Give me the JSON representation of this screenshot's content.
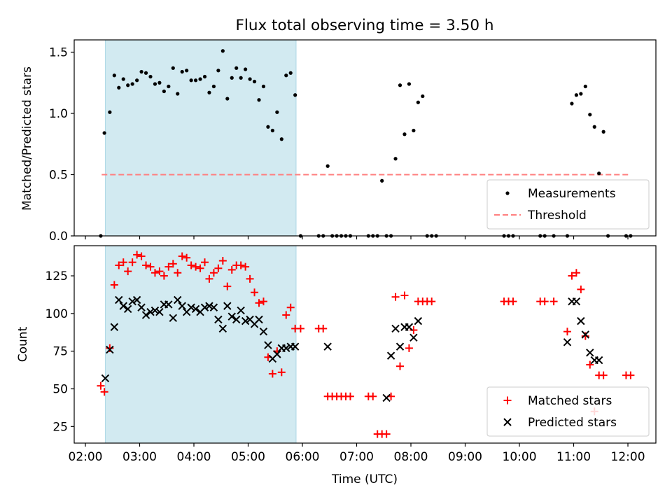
{
  "title": "Flux total observing time = 3.50 h",
  "chart_data": [
    {
      "type": "scatter",
      "panel": "top",
      "ylabel": "Matched/Predicted stars",
      "ylim": [
        0,
        1.6
      ],
      "yticks": [
        0.0,
        0.5,
        1.0,
        1.5
      ],
      "ytick_labels": [
        "0.0",
        "0.5",
        "1.0",
        "1.5"
      ],
      "xlim": [
        "02:00",
        "12:00"
      ],
      "grid": false,
      "legend": "bottom-right",
      "shaded_interval": {
        "start": "02:22",
        "end": "05:53",
        "color": "#add8e6"
      },
      "threshold": {
        "name": "Threshold",
        "value": 0.5,
        "x_range": [
          "02:18",
          "12:03"
        ],
        "color": "#ff7f7f",
        "style": "dashed"
      },
      "series": [
        {
          "name": "Measurements",
          "marker": "dot",
          "color": "#000000",
          "points": [
            [
              "02:17",
              0.0
            ],
            [
              "02:21",
              0.84
            ],
            [
              "02:27",
              1.01
            ],
            [
              "02:32",
              1.31
            ],
            [
              "02:37",
              1.21
            ],
            [
              "02:42",
              1.28
            ],
            [
              "02:47",
              1.23
            ],
            [
              "02:52",
              1.24
            ],
            [
              "02:57",
              1.27
            ],
            [
              "03:02",
              1.34
            ],
            [
              "03:07",
              1.33
            ],
            [
              "03:12",
              1.3
            ],
            [
              "03:17",
              1.24
            ],
            [
              "03:22",
              1.25
            ],
            [
              "03:27",
              1.18
            ],
            [
              "03:32",
              1.22
            ],
            [
              "03:37",
              1.37
            ],
            [
              "03:42",
              1.16
            ],
            [
              "03:47",
              1.34
            ],
            [
              "03:52",
              1.35
            ],
            [
              "03:57",
              1.27
            ],
            [
              "04:02",
              1.27
            ],
            [
              "04:07",
              1.28
            ],
            [
              "04:12",
              1.3
            ],
            [
              "04:17",
              1.17
            ],
            [
              "04:22",
              1.22
            ],
            [
              "04:27",
              1.35
            ],
            [
              "04:32",
              1.51
            ],
            [
              "04:37",
              1.12
            ],
            [
              "04:42",
              1.29
            ],
            [
              "04:47",
              1.37
            ],
            [
              "04:52",
              1.29
            ],
            [
              "04:57",
              1.36
            ],
            [
              "05:02",
              1.28
            ],
            [
              "05:07",
              1.26
            ],
            [
              "05:12",
              1.11
            ],
            [
              "05:17",
              1.22
            ],
            [
              "05:22",
              0.89
            ],
            [
              "05:27",
              0.86
            ],
            [
              "05:32",
              1.01
            ],
            [
              "05:37",
              0.79
            ],
            [
              "05:42",
              1.31
            ],
            [
              "05:47",
              1.33
            ],
            [
              "05:52",
              1.15
            ],
            [
              "05:58",
              0.0
            ],
            [
              "06:18",
              0.0
            ],
            [
              "06:23",
              0.0
            ],
            [
              "06:28",
              0.57
            ],
            [
              "06:33",
              0.0
            ],
            [
              "06:38",
              0.0
            ],
            [
              "06:43",
              0.0
            ],
            [
              "06:48",
              0.0
            ],
            [
              "06:53",
              0.0
            ],
            [
              "07:13",
              0.0
            ],
            [
              "07:18",
              0.0
            ],
            [
              "07:23",
              0.0
            ],
            [
              "07:28",
              0.45
            ],
            [
              "07:33",
              0.0
            ],
            [
              "07:38",
              0.0
            ],
            [
              "07:43",
              0.63
            ],
            [
              "07:48",
              1.23
            ],
            [
              "07:53",
              0.83
            ],
            [
              "07:58",
              1.24
            ],
            [
              "08:03",
              0.86
            ],
            [
              "08:08",
              1.09
            ],
            [
              "08:13",
              1.14
            ],
            [
              "08:18",
              0.0
            ],
            [
              "08:23",
              0.0
            ],
            [
              "08:28",
              0.0
            ],
            [
              "09:43",
              0.0
            ],
            [
              "09:48",
              0.0
            ],
            [
              "09:53",
              0.0
            ],
            [
              "10:23",
              0.0
            ],
            [
              "10:28",
              0.0
            ],
            [
              "10:38",
              0.0
            ],
            [
              "10:53",
              0.0
            ],
            [
              "10:58",
              1.08
            ],
            [
              "11:03",
              1.15
            ],
            [
              "11:08",
              1.16
            ],
            [
              "11:13",
              1.22
            ],
            [
              "11:18",
              0.99
            ],
            [
              "11:23",
              0.89
            ],
            [
              "11:28",
              0.51
            ],
            [
              "11:33",
              0.85
            ],
            [
              "11:38",
              0.0
            ],
            [
              "11:58",
              0.0
            ],
            [
              "12:03",
              0.0
            ]
          ]
        }
      ]
    },
    {
      "type": "scatter",
      "panel": "bottom",
      "xlabel": "Time (UTC)",
      "ylabel": "Count",
      "ylim": [
        14,
        145
      ],
      "yticks": [
        25,
        50,
        75,
        100,
        125
      ],
      "ytick_labels": [
        "25",
        "50",
        "75",
        "100",
        "125"
      ],
      "xlim": [
        "02:00",
        "12:00"
      ],
      "xticks": [
        "02:00",
        "03:00",
        "04:00",
        "05:00",
        "06:00",
        "07:00",
        "08:00",
        "09:00",
        "10:00",
        "11:00",
        "12:00"
      ],
      "grid": false,
      "legend": "bottom-right",
      "shaded_interval": {
        "start": "02:22",
        "end": "05:53",
        "color": "#add8e6"
      },
      "series": [
        {
          "name": "Matched stars",
          "marker": "plus",
          "color": "#ff0000",
          "points": [
            [
              "02:17",
              52
            ],
            [
              "02:21",
              48
            ],
            [
              "02:27",
              77
            ],
            [
              "02:32",
              119
            ],
            [
              "02:37",
              132
            ],
            [
              "02:42",
              134
            ],
            [
              "02:47",
              128
            ],
            [
              "02:52",
              134
            ],
            [
              "02:57",
              139
            ],
            [
              "03:02",
              138
            ],
            [
              "03:07",
              132
            ],
            [
              "03:12",
              131
            ],
            [
              "03:17",
              127
            ],
            [
              "03:22",
              128
            ],
            [
              "03:27",
              125
            ],
            [
              "03:32",
              131
            ],
            [
              "03:37",
              133
            ],
            [
              "03:42",
              127
            ],
            [
              "03:47",
              138
            ],
            [
              "03:52",
              137
            ],
            [
              "03:57",
              132
            ],
            [
              "04:02",
              131
            ],
            [
              "04:07",
              130
            ],
            [
              "04:12",
              134
            ],
            [
              "04:17",
              123
            ],
            [
              "04:22",
              127
            ],
            [
              "04:27",
              130
            ],
            [
              "04:32",
              135
            ],
            [
              "04:37",
              118
            ],
            [
              "04:42",
              129
            ],
            [
              "04:47",
              132
            ],
            [
              "04:52",
              132
            ],
            [
              "04:57",
              131
            ],
            [
              "05:02",
              123
            ],
            [
              "05:07",
              114
            ],
            [
              "05:12",
              107
            ],
            [
              "05:17",
              108
            ],
            [
              "05:22",
              71
            ],
            [
              "05:27",
              60
            ],
            [
              "05:32",
              75
            ],
            [
              "05:37",
              61
            ],
            [
              "05:42",
              99
            ],
            [
              "05:47",
              104
            ],
            [
              "05:52",
              90
            ],
            [
              "05:58",
              90
            ],
            [
              "06:18",
              90
            ],
            [
              "06:23",
              90
            ],
            [
              "06:28",
              45
            ],
            [
              "06:33",
              45
            ],
            [
              "06:38",
              45
            ],
            [
              "06:43",
              45
            ],
            [
              "06:48",
              45
            ],
            [
              "06:53",
              45
            ],
            [
              "07:13",
              45
            ],
            [
              "07:18",
              45
            ],
            [
              "07:23",
              20
            ],
            [
              "07:28",
              20
            ],
            [
              "07:33",
              20
            ],
            [
              "07:38",
              45
            ],
            [
              "07:43",
              111
            ],
            [
              "07:48",
              65
            ],
            [
              "07:53",
              112
            ],
            [
              "07:58",
              77
            ],
            [
              "08:03",
              89
            ],
            [
              "08:08",
              108
            ],
            [
              "08:13",
              108
            ],
            [
              "08:18",
              108
            ],
            [
              "08:23",
              108
            ],
            [
              "09:43",
              108
            ],
            [
              "09:48",
              108
            ],
            [
              "09:53",
              108
            ],
            [
              "10:23",
              108
            ],
            [
              "10:28",
              108
            ],
            [
              "10:38",
              108
            ],
            [
              "10:53",
              88
            ],
            [
              "10:58",
              125
            ],
            [
              "11:03",
              127
            ],
            [
              "11:08",
              116
            ],
            [
              "11:13",
              85
            ],
            [
              "11:18",
              66
            ],
            [
              "11:23",
              35
            ],
            [
              "11:28",
              59
            ],
            [
              "11:33",
              59
            ],
            [
              "11:58",
              59
            ],
            [
              "12:03",
              59
            ]
          ]
        },
        {
          "name": "Predicted stars",
          "marker": "x",
          "color": "#000000",
          "points": [
            [
              "02:22",
              57
            ],
            [
              "02:27",
              76
            ],
            [
              "02:32",
              91
            ],
            [
              "02:37",
              109
            ],
            [
              "02:42",
              105
            ],
            [
              "02:47",
              103
            ],
            [
              "02:52",
              108
            ],
            [
              "02:57",
              109
            ],
            [
              "03:02",
              104
            ],
            [
              "03:07",
              99
            ],
            [
              "03:12",
              101
            ],
            [
              "03:17",
              102
            ],
            [
              "03:22",
              101
            ],
            [
              "03:27",
              106
            ],
            [
              "03:32",
              106
            ],
            [
              "03:37",
              97
            ],
            [
              "03:42",
              109
            ],
            [
              "03:47",
              105
            ],
            [
              "03:52",
              101
            ],
            [
              "03:57",
              104
            ],
            [
              "04:02",
              103
            ],
            [
              "04:07",
              101
            ],
            [
              "04:12",
              104
            ],
            [
              "04:17",
              105
            ],
            [
              "04:22",
              104
            ],
            [
              "04:27",
              96
            ],
            [
              "04:32",
              90
            ],
            [
              "04:37",
              105
            ],
            [
              "04:42",
              98
            ],
            [
              "04:47",
              96
            ],
            [
              "04:52",
              102
            ],
            [
              "04:57",
              95
            ],
            [
              "05:02",
              96
            ],
            [
              "05:07",
              93
            ],
            [
              "05:12",
              96
            ],
            [
              "05:17",
              88
            ],
            [
              "05:22",
              79
            ],
            [
              "05:27",
              70
            ],
            [
              "05:32",
              73
            ],
            [
              "05:37",
              77
            ],
            [
              "05:42",
              77
            ],
            [
              "05:47",
              78
            ],
            [
              "05:52",
              78
            ],
            [
              "06:28",
              78
            ],
            [
              "07:33",
              44
            ],
            [
              "07:38",
              72
            ],
            [
              "07:43",
              90
            ],
            [
              "07:48",
              78
            ],
            [
              "07:53",
              91
            ],
            [
              "07:58",
              91
            ],
            [
              "08:03",
              84
            ],
            [
              "08:08",
              95
            ],
            [
              "10:53",
              81
            ],
            [
              "10:58",
              108
            ],
            [
              "11:03",
              108
            ],
            [
              "11:08",
              95
            ],
            [
              "11:13",
              86
            ],
            [
              "11:18",
              74
            ],
            [
              "11:23",
              69
            ],
            [
              "11:28",
              69
            ]
          ]
        }
      ]
    }
  ]
}
